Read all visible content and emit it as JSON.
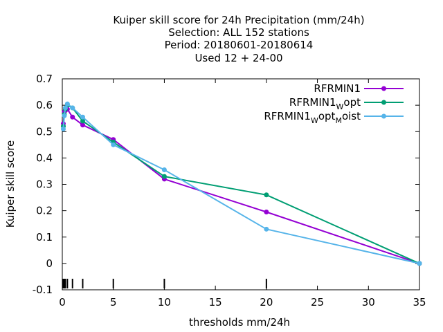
{
  "chart_data": {
    "type": "line",
    "title_lines": [
      "Kuiper skill score  for 24h Precipitation (mm/24h)",
      "Selection: ALL    152 stations",
      "Period: 20180601-20180614",
      "Used  12 + 24-00"
    ],
    "xlabel": "thresholds mm/24h",
    "ylabel": "Kuiper skill score",
    "xlim": [
      0,
      35
    ],
    "ylim": [
      -0.1,
      0.7
    ],
    "x_ticks": [
      0,
      5,
      10,
      15,
      20,
      25,
      30,
      35
    ],
    "x_tick_labels": [
      "0",
      "5",
      "10",
      "15",
      "20",
      "25",
      "30",
      "35"
    ],
    "y_ticks": [
      -0.1,
      0,
      0.1,
      0.2,
      0.3,
      0.4,
      0.5,
      0.6,
      0.7
    ],
    "y_tick_labels": [
      "-0.1",
      "0",
      "0.1",
      "0.2",
      "0.3",
      "0.4",
      "0.5",
      "0.6",
      "0.7"
    ],
    "threshold_marks": [
      0.1,
      0.2,
      0.3,
      0.5,
      1,
      2,
      5,
      10,
      20
    ],
    "grid": false,
    "legend_position": "top-right",
    "series": [
      {
        "name": "RFRMIN1",
        "legend": {
          "main": "RFRMIN1",
          "parts": []
        },
        "color": "#9400d3",
        "x": [
          0.1,
          0.2,
          0.3,
          0.5,
          1,
          2,
          5,
          10,
          20,
          35
        ],
        "y": [
          0.53,
          0.575,
          0.58,
          0.585,
          0.555,
          0.525,
          0.47,
          0.32,
          0.195,
          0.0
        ]
      },
      {
        "name": "RFRMIN1_Wopt",
        "legend": {
          "main": "RFRMIN1",
          "parts": [
            {
              "sub": "W",
              "text": "opt"
            }
          ]
        },
        "color": "#009e73",
        "x": [
          0.1,
          0.2,
          0.3,
          0.5,
          1,
          2,
          5,
          10,
          20,
          35
        ],
        "y": [
          0.52,
          0.565,
          0.585,
          0.6,
          0.59,
          0.54,
          0.46,
          0.33,
          0.26,
          0.0
        ]
      },
      {
        "name": "RFRMIN1_Wopt_Moist",
        "legend": {
          "main": "RFRMIN1",
          "parts": [
            {
              "sub": "W",
              "text": "opt"
            },
            {
              "sub": "M",
              "text": "oist"
            }
          ]
        },
        "color": "#56b4e9",
        "x": [
          0.1,
          0.2,
          0.3,
          0.5,
          1,
          2,
          5,
          10,
          20,
          35
        ],
        "y": [
          0.51,
          0.56,
          0.59,
          0.605,
          0.59,
          0.555,
          0.45,
          0.355,
          0.13,
          0.0
        ]
      }
    ]
  }
}
